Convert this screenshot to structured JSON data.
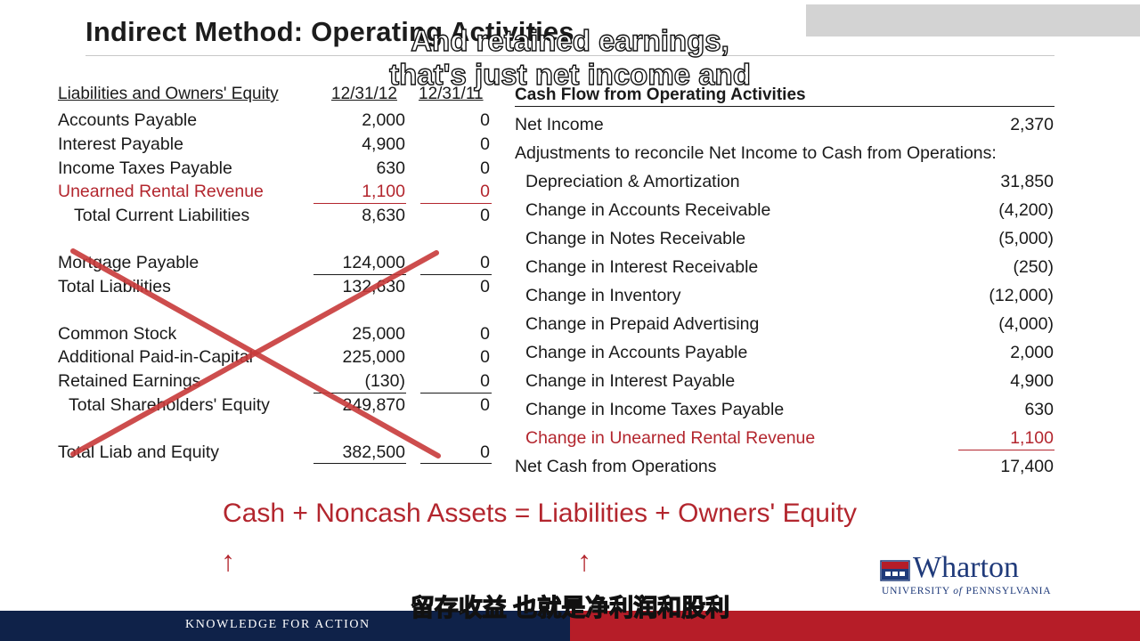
{
  "title": "Indirect Method: Operating Activities",
  "captions": {
    "en_line1": "And retained earnings,",
    "en_line2": "that's just net income and",
    "zh": "留存收益 也就是净利润和股利"
  },
  "left_table": {
    "header": "Liabilities and Owners' Equity",
    "col1": "12/31/12",
    "col2": "12/31/11",
    "rows": [
      {
        "label": "Accounts Payable",
        "v1": "2,000",
        "v2": "0"
      },
      {
        "label": "Interest Payable",
        "v1": "4,900",
        "v2": "0"
      },
      {
        "label": "Income Taxes Payable",
        "v1": "630",
        "v2": "0"
      },
      {
        "label": "Unearned Rental Revenue",
        "v1": "1,100",
        "v2": "0"
      },
      {
        "label": "Total Current Liabilities",
        "v1": "8,630",
        "v2": "0"
      },
      {
        "label": "Mortgage Payable",
        "v1": "124,000",
        "v2": "0"
      },
      {
        "label": "Total Liabilities",
        "v1": "132,630",
        "v2": "0"
      },
      {
        "label": "Common Stock",
        "v1": "25,000",
        "v2": "0"
      },
      {
        "label": "Additional Paid-in-Capital",
        "v1": "225,000",
        "v2": "0"
      },
      {
        "label": "Retained Earnings",
        "v1": "(130)",
        "v2": "0"
      },
      {
        "label": "Total Shareholders' Equity",
        "v1": "249,870",
        "v2": "0"
      },
      {
        "label": "Total Liab and Equity",
        "v1": "382,500",
        "v2": "0"
      }
    ]
  },
  "right_table": {
    "header": "Cash Flow from Operating Activities",
    "rows": [
      {
        "label": "Net Income",
        "value": "2,370"
      },
      {
        "label": "Adjustments to reconcile Net Income to Cash from Operations:",
        "value": ""
      },
      {
        "label": "Depreciation & Amortization",
        "value": "31,850"
      },
      {
        "label": "Change in Accounts Receivable",
        "value": "(4,200)"
      },
      {
        "label": "Change in Notes Receivable",
        "value": "(5,000)"
      },
      {
        "label": "Change in Interest Receivable",
        "value": "(250)"
      },
      {
        "label": "Change in Inventory",
        "value": "(12,000)"
      },
      {
        "label": "Change in Prepaid Advertising",
        "value": "(4,000)"
      },
      {
        "label": "Change in Accounts Payable",
        "value": "2,000"
      },
      {
        "label": "Change in Interest Payable",
        "value": "4,900"
      },
      {
        "label": "Change in Income Taxes Payable",
        "value": "630"
      },
      {
        "label": "Change in Unearned Rental Revenue",
        "value": "1,100"
      },
      {
        "label": "Net Cash from Operations",
        "value": "17,400"
      }
    ]
  },
  "equation": "Cash + Noncash Assets = Liabilities + Owners' Equity",
  "arrows": {
    "left": "↑",
    "right": "↑"
  },
  "footer": {
    "tagline": "KNOWLEDGE FOR ACTION"
  },
  "logo": {
    "word": "Wharton",
    "sub_pre": "UNIVERSITY ",
    "sub_of": "of",
    "sub_post": " PENNSYLVANIA"
  },
  "colors": {
    "accent_red": "#b3262e",
    "footer_blue": "#0f2249",
    "footer_red": "#b61d28",
    "logo_blue": "#1f3a7a"
  }
}
